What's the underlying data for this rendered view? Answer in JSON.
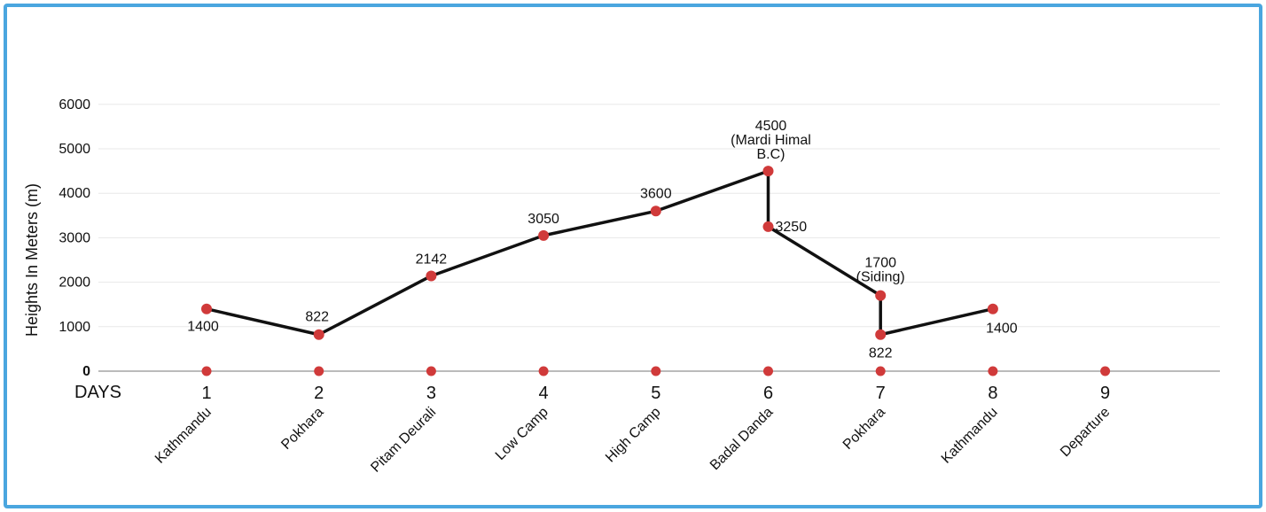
{
  "chart_data": {
    "type": "line",
    "title": "",
    "ylabel": "Heights In Meters (m)",
    "xlabel": "DAYS",
    "ylim": [
      0,
      6000
    ],
    "yticks": [
      0,
      1000,
      2000,
      3000,
      4000,
      5000,
      6000
    ],
    "ytick_labels": [
      "0",
      "1000",
      "2000",
      "3000",
      "4000",
      "5000",
      "6000"
    ],
    "days": [
      1,
      2,
      3,
      4,
      5,
      6,
      7,
      8,
      9
    ],
    "places": [
      "Kathmandu",
      "Pokhara",
      "Pitam Deurali",
      "Low Camp",
      "High Camp",
      "Badal Danda",
      "Pokhara",
      "Kathmandu",
      "Departure"
    ],
    "points": [
      {
        "x": 1,
        "y": 1400,
        "label": "1400"
      },
      {
        "x": 2,
        "y": 822,
        "label": "822"
      },
      {
        "x": 3,
        "y": 2142,
        "label": "2142"
      },
      {
        "x": 4,
        "y": 3050,
        "label": "3050"
      },
      {
        "x": 5,
        "y": 3600,
        "label": "3600"
      },
      {
        "x": 6,
        "y": 4500,
        "label": "4500\n(Mardi Himal\nB.C)"
      },
      {
        "x": 6,
        "y": 3250,
        "label": "3250"
      },
      {
        "x": 7,
        "y": 1700,
        "label": "1700\n(Siding)"
      },
      {
        "x": 7,
        "y": 822,
        "label": "822"
      },
      {
        "x": 8,
        "y": 1400,
        "label": "1400"
      }
    ],
    "grid": true,
    "colors": {
      "line": "#111111",
      "marker": "#d03a3a",
      "grid": "#e8e8e8",
      "axis": "#bbbbbb",
      "border": "#4aa6df"
    }
  }
}
